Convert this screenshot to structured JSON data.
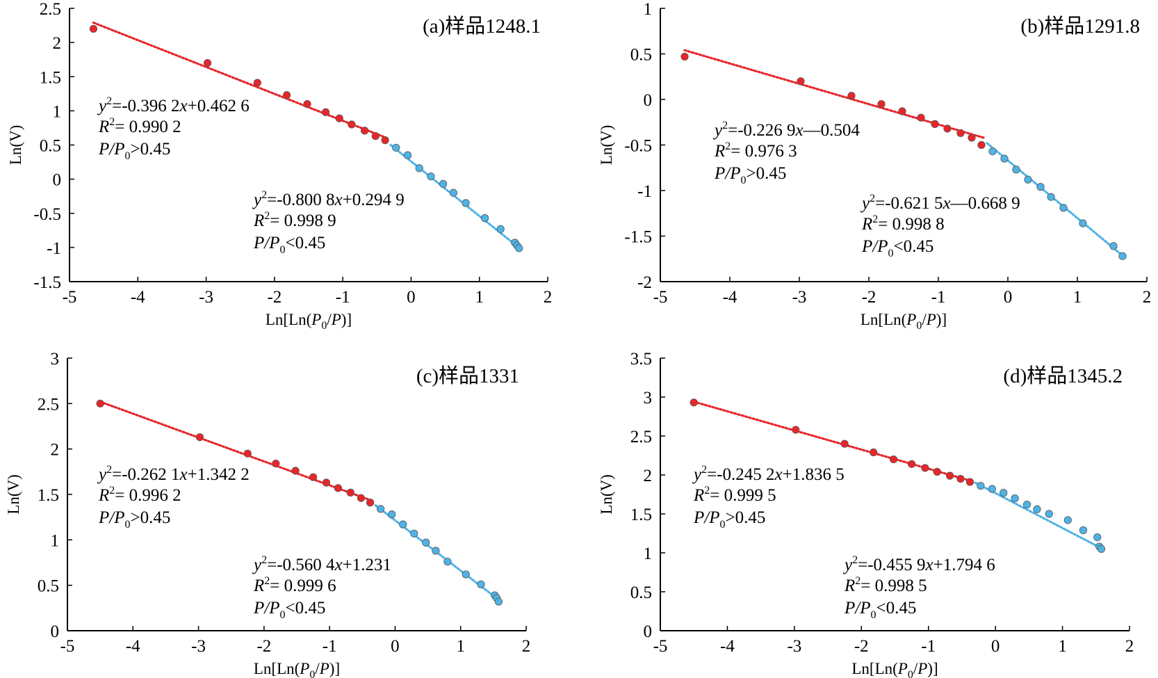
{
  "figure": {
    "colors": {
      "low_pressure": "#e8262a",
      "high_pressure": "#4fb3e6",
      "axis": "#000000"
    }
  },
  "chart_data": [
    {
      "type": "scatter",
      "panel": "a",
      "title": "(a)样品1248.1",
      "xlabel": "Ln[Ln(P0/P)]",
      "ylabel": "Ln(V)",
      "xlim": [
        -5,
        2
      ],
      "ylim": [
        -1.5,
        2.5
      ],
      "xticks": [
        -5,
        -4,
        -3,
        -2,
        -1,
        0,
        1,
        2
      ],
      "yticks": [
        -1.5,
        -1,
        -0.5,
        0,
        0.5,
        1,
        1.5,
        2,
        2.5
      ],
      "ytick_labels": [
        "-1.5",
        "-1",
        "-0.5",
        "0",
        "0.5",
        "1",
        "1.5",
        "2",
        "2.5"
      ],
      "series": [
        {
          "name": "P/P0>0.45",
          "x": [
            -4.65,
            -2.98,
            -2.25,
            -1.82,
            -1.52,
            -1.25,
            -1.05,
            -0.87,
            -0.68,
            -0.52,
            -0.38
          ],
          "y": [
            2.2,
            1.7,
            1.41,
            1.23,
            1.1,
            0.98,
            0.89,
            0.8,
            0.71,
            0.63,
            0.57
          ]
        },
        {
          "name": "P/P0<0.45",
          "x": [
            -0.22,
            -0.05,
            0.12,
            0.29,
            0.47,
            0.62,
            0.8,
            1.08,
            1.31,
            1.52,
            1.55,
            1.58
          ],
          "y": [
            0.46,
            0.35,
            0.16,
            0.04,
            -0.07,
            -0.2,
            -0.35,
            -0.57,
            -0.73,
            -0.93,
            -0.97,
            -1.01
          ]
        }
      ],
      "fits": [
        {
          "series": "P/P0>0.45",
          "x_range": [
            -4.65,
            -0.35
          ],
          "y_range": [
            2.29,
            0.6
          ]
        },
        {
          "series": "P/P0<0.45",
          "x_range": [
            -0.3,
            1.6
          ],
          "y_range": [
            0.5,
            -1.02
          ]
        }
      ],
      "annotations": [
        {
          "lines": [
            {
              "eq_prefix": "y",
              "sup": "2",
              "eq_a": "=-0.396 2",
              "eq_x": "x",
              "eq_b": "+0.462 6"
            },
            {
              "r": "R",
              "r_sup": "2",
              "r_val": "= 0.990 2"
            },
            {
              "p": "P",
              "p_slash": "/",
              "p_p0": "P",
              "p_sub": "0",
              "p_cmp": ">0.45"
            }
          ]
        },
        {
          "lines": [
            {
              "eq_prefix": "y",
              "sup": "2",
              "eq_a": "=-0.800 8",
              "eq_x": "x",
              "eq_b": "+0.294 9"
            },
            {
              "r": "R",
              "r_sup": "2",
              "r_val": "= 0.998 9"
            },
            {
              "p": "P",
              "p_slash": "/",
              "p_p0": "P",
              "p_sub": "0",
              "p_cmp": "<0.45"
            }
          ]
        }
      ]
    },
    {
      "type": "scatter",
      "panel": "b",
      "title": "(b)样品1291.8",
      "xlabel": "Ln[Ln(P0/P)]",
      "ylabel": "Ln(V)",
      "xlim": [
        -5,
        2
      ],
      "ylim": [
        -2,
        1
      ],
      "xticks": [
        -5,
        -4,
        -3,
        -2,
        -1,
        0,
        1,
        2
      ],
      "yticks": [
        -2,
        -1.5,
        -1,
        -0.5,
        0,
        0.5,
        1
      ],
      "ytick_labels": [
        "-2",
        "-1.5",
        "-1",
        "-0.5",
        "0",
        "0.5",
        "1"
      ],
      "series": [
        {
          "name": "P/P0>0.45",
          "x": [
            -4.65,
            -2.98,
            -2.25,
            -1.82,
            -1.52,
            -1.25,
            -1.05,
            -0.87,
            -0.68,
            -0.52,
            -0.38
          ],
          "y": [
            0.47,
            0.2,
            0.04,
            -0.05,
            -0.13,
            -0.2,
            -0.27,
            -0.32,
            -0.37,
            -0.42,
            -0.5
          ]
        },
        {
          "name": "P/P0<0.45",
          "x": [
            -0.22,
            -0.05,
            0.12,
            0.29,
            0.47,
            0.62,
            0.8,
            1.08,
            1.52,
            1.65
          ],
          "y": [
            -0.57,
            -0.65,
            -0.77,
            -0.88,
            -0.96,
            -1.07,
            -1.19,
            -1.36,
            -1.61,
            -1.72
          ]
        }
      ],
      "fits": [
        {
          "series": "P/P0>0.45",
          "x_range": [
            -4.65,
            -0.35
          ],
          "y_range": [
            0.54,
            -0.42
          ]
        },
        {
          "series": "P/P0<0.45",
          "x_range": [
            -0.3,
            1.66
          ],
          "y_range": [
            -0.48,
            -1.72
          ]
        }
      ],
      "annotations": [
        {
          "lines": [
            {
              "eq_prefix": "y",
              "sup": "2",
              "eq_a": "=-0.226 9",
              "eq_x": "x",
              "eq_b": "—0.504"
            },
            {
              "r": "R",
              "r_sup": "2",
              "r_val": "= 0.976 3"
            },
            {
              "p": "P",
              "p_slash": "/",
              "p_p0": "P",
              "p_sub": "0",
              "p_cmp": ">0.45"
            }
          ]
        },
        {
          "lines": [
            {
              "eq_prefix": "y",
              "sup": "2",
              "eq_a": "=-0.621 5",
              "eq_x": "x",
              "eq_b": "—0.668 9"
            },
            {
              "r": "R",
              "r_sup": "2",
              "r_val": "= 0.998 8"
            },
            {
              "p": "P",
              "p_slash": "/",
              "p_p0": "P",
              "p_sub": "0",
              "p_cmp": "<0.45"
            }
          ]
        }
      ]
    },
    {
      "type": "scatter",
      "panel": "c",
      "title": "(c)样品1331",
      "xlabel": "Ln[Ln(P0/P)]",
      "ylabel": "Ln(V)",
      "xlim": [
        -5,
        2
      ],
      "ylim": [
        0,
        3
      ],
      "xticks": [
        -5,
        -4,
        -3,
        -2,
        -1,
        0,
        1,
        2
      ],
      "yticks": [
        0,
        0.5,
        1,
        1.5,
        2,
        2.5,
        3
      ],
      "ytick_labels": [
        "0",
        "0.5",
        "1",
        "1.5",
        "2",
        "2.5",
        "3"
      ],
      "series": [
        {
          "name": "P/P0>0.45",
          "x": [
            -4.5,
            -2.98,
            -2.25,
            -1.82,
            -1.52,
            -1.25,
            -1.05,
            -0.87,
            -0.68,
            -0.52,
            -0.38
          ],
          "y": [
            2.5,
            2.13,
            1.95,
            1.84,
            1.76,
            1.69,
            1.63,
            1.57,
            1.52,
            1.46,
            1.41
          ]
        },
        {
          "name": "P/P0<0.45",
          "x": [
            -0.22,
            -0.05,
            0.12,
            0.29,
            0.47,
            0.62,
            0.8,
            1.08,
            1.31,
            1.52,
            1.55,
            1.58
          ],
          "y": [
            1.34,
            1.28,
            1.17,
            1.07,
            0.97,
            0.88,
            0.76,
            0.62,
            0.51,
            0.39,
            0.36,
            0.32
          ]
        }
      ],
      "fits": [
        {
          "series": "P/P0>0.45",
          "x_range": [
            -4.5,
            -0.35
          ],
          "y_range": [
            2.52,
            1.43
          ]
        },
        {
          "series": "P/P0<0.45",
          "x_range": [
            -0.3,
            1.6
          ],
          "y_range": [
            1.38,
            0.33
          ]
        }
      ],
      "annotations": [
        {
          "lines": [
            {
              "eq_prefix": "y",
              "sup": "2",
              "eq_a": "=-0.262 1",
              "eq_x": "x",
              "eq_b": "+1.342 2"
            },
            {
              "r": "R",
              "r_sup": "2",
              "r_val": "= 0.996 2"
            },
            {
              "p": "P",
              "p_slash": "/",
              "p_p0": "P",
              "p_sub": "0",
              "p_cmp": ">0.45"
            }
          ]
        },
        {
          "lines": [
            {
              "eq_prefix": "y",
              "sup": "2",
              "eq_a": "=-0.560 4",
              "eq_x": "x",
              "eq_b": "+1.231"
            },
            {
              "r": "R",
              "r_sup": "2",
              "r_val": "= 0.999 6"
            },
            {
              "p": "P",
              "p_slash": "/",
              "p_p0": "P",
              "p_sub": "0",
              "p_cmp": "<0.45"
            }
          ]
        }
      ]
    },
    {
      "type": "scatter",
      "panel": "d",
      "title": "(d)样品1345.2",
      "xlabel": "Ln[Ln(P0/P)]",
      "ylabel": "Ln(V)",
      "xlim": [
        -5,
        2
      ],
      "ylim": [
        0,
        3.5
      ],
      "xticks": [
        -5,
        -4,
        -3,
        -2,
        -1,
        0,
        1,
        2
      ],
      "yticks": [
        0,
        0.5,
        1,
        1.5,
        2,
        2.5,
        3,
        3.5
      ],
      "ytick_labels": [
        "0",
        "0.5",
        "1",
        "1.5",
        "2",
        "2.5",
        "3",
        "3.5"
      ],
      "series": [
        {
          "name": "P/P0>0.45",
          "x": [
            -4.5,
            -2.98,
            -2.25,
            -1.82,
            -1.52,
            -1.25,
            -1.05,
            -0.87,
            -0.68,
            -0.52,
            -0.38
          ],
          "y": [
            2.93,
            2.58,
            2.4,
            2.29,
            2.2,
            2.14,
            2.09,
            2.04,
            1.99,
            1.95,
            1.91
          ]
        },
        {
          "name": "P/P0<0.45",
          "x": [
            -0.22,
            -0.05,
            0.12,
            0.29,
            0.47,
            0.62,
            0.8,
            1.08,
            1.31,
            1.52,
            1.55,
            1.58
          ],
          "y": [
            1.86,
            1.82,
            1.77,
            1.7,
            1.62,
            1.56,
            1.5,
            1.42,
            1.29,
            1.2,
            1.08,
            1.05
          ]
        }
      ],
      "fits": [
        {
          "series": "P/P0>0.45",
          "x_range": [
            -4.5,
            -0.35
          ],
          "y_range": [
            2.94,
            1.92
          ]
        },
        {
          "series": "P/P0<0.45",
          "x_range": [
            -0.3,
            1.6
          ],
          "y_range": [
            1.9,
            1.05
          ]
        }
      ],
      "annotations": [
        {
          "lines": [
            {
              "eq_prefix": "y",
              "sup": "2",
              "eq_a": "=-0.245 2",
              "eq_x": "x",
              "eq_b": "+1.836 5"
            },
            {
              "r": "R",
              "r_sup": "2",
              "r_val": "= 0.999 5"
            },
            {
              "p": "P",
              "p_slash": "/",
              "p_p0": "P",
              "p_sub": "0",
              "p_cmp": ">0.45"
            }
          ]
        },
        {
          "lines": [
            {
              "eq_prefix": "y",
              "sup": "2",
              "eq_a": "=-0.455 9",
              "eq_x": "x",
              "eq_b": "+1.794 6"
            },
            {
              "r": "R",
              "r_sup": "2",
              "r_val": "= 0.998 5"
            },
            {
              "p": "P",
              "p_slash": "/",
              "p_p0": "P",
              "p_sub": "0",
              "p_cmp": "<0.45"
            }
          ]
        }
      ]
    }
  ]
}
